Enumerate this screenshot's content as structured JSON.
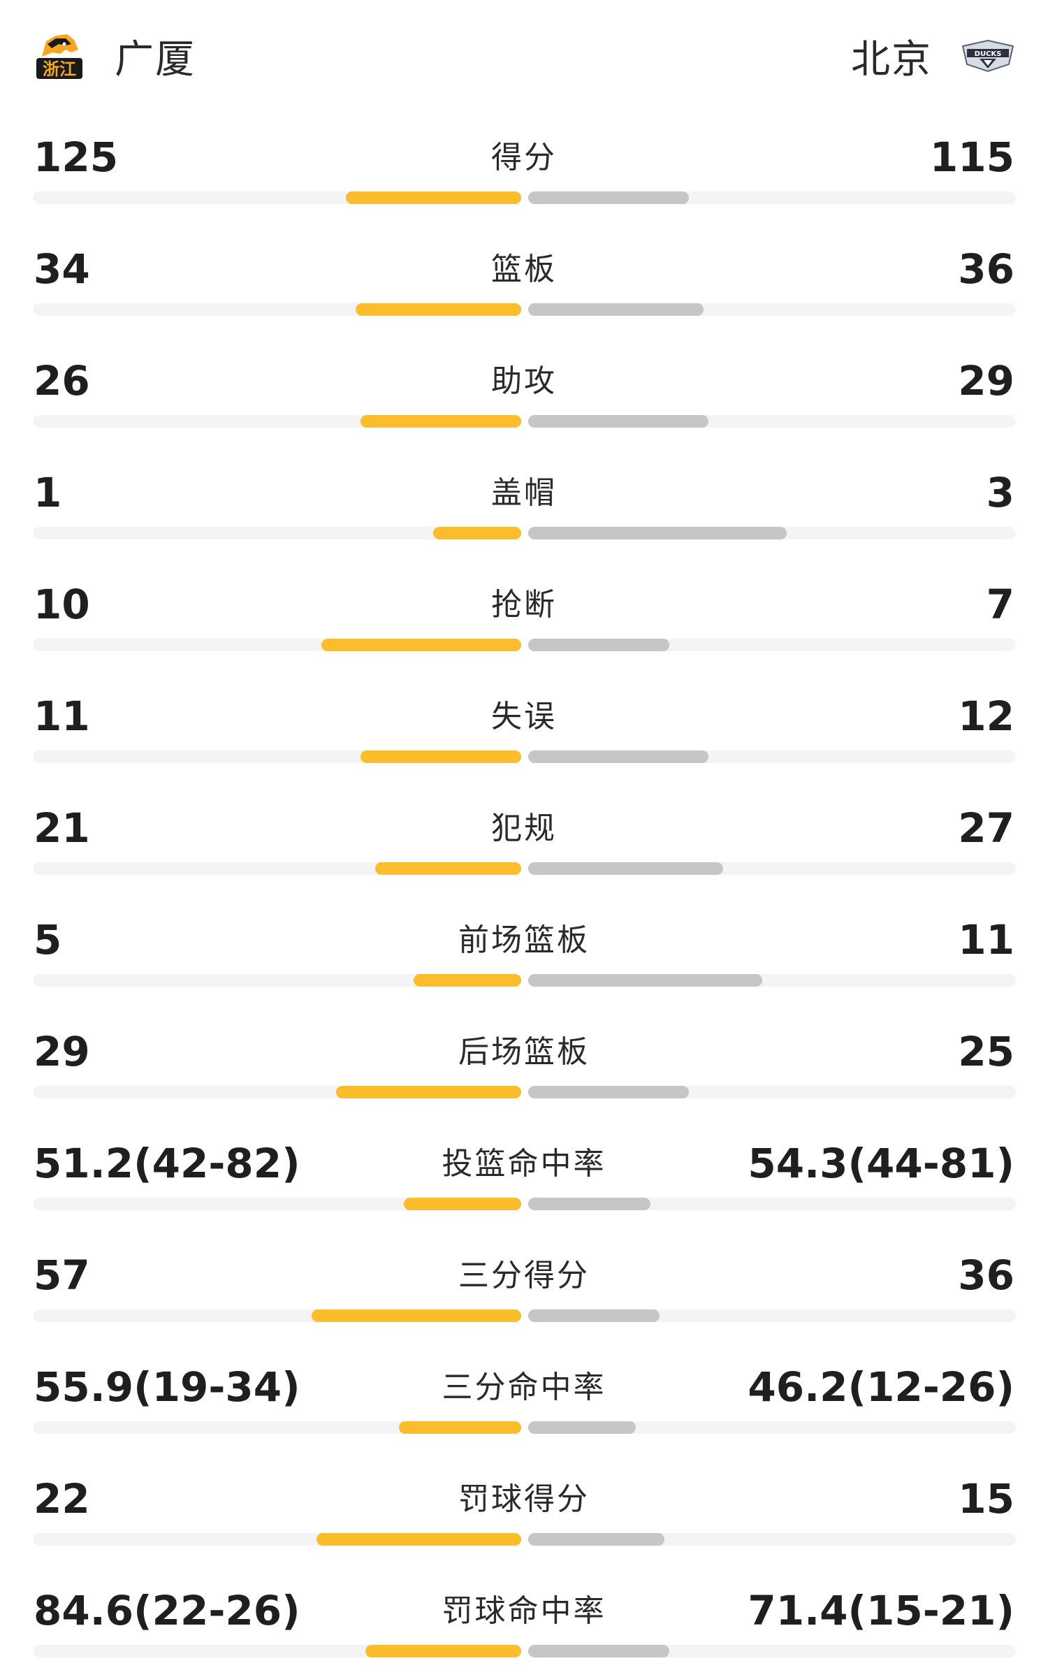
{
  "header": {
    "home_team": "广厦",
    "away_team": "北京",
    "home_logo": "zhejiang-lion-logo",
    "away_logo": "beijing-ducks-logo"
  },
  "colors": {
    "home_bar": "#fcbd2c",
    "away_bar": "#c6c6c6",
    "track": "#f4f4f4"
  },
  "stats": [
    {
      "label": "得分",
      "home": "125",
      "away": "115",
      "home_fraction": 0.36,
      "away_fraction": 0.33
    },
    {
      "label": "篮板",
      "home": "34",
      "away": "36",
      "home_fraction": 0.34,
      "away_fraction": 0.36
    },
    {
      "label": "助攻",
      "home": "26",
      "away": "29",
      "home_fraction": 0.33,
      "away_fraction": 0.37
    },
    {
      "label": "盖帽",
      "home": "1",
      "away": "3",
      "home_fraction": 0.18,
      "away_fraction": 0.53
    },
    {
      "label": "抢断",
      "home": "10",
      "away": "7",
      "home_fraction": 0.41,
      "away_fraction": 0.29
    },
    {
      "label": "失误",
      "home": "11",
      "away": "12",
      "home_fraction": 0.33,
      "away_fraction": 0.37
    },
    {
      "label": "犯规",
      "home": "21",
      "away": "27",
      "home_fraction": 0.3,
      "away_fraction": 0.4
    },
    {
      "label": "前场篮板",
      "home": "5",
      "away": "11",
      "home_fraction": 0.22,
      "away_fraction": 0.48
    },
    {
      "label": "后场篮板",
      "home": "29",
      "away": "25",
      "home_fraction": 0.38,
      "away_fraction": 0.33
    },
    {
      "label": "投篮命中率",
      "home": "51.2(42-82)",
      "away": "54.3(44-81)",
      "home_fraction": 0.24,
      "away_fraction": 0.25
    },
    {
      "label": "三分得分",
      "home": "57",
      "away": "36",
      "home_fraction": 0.43,
      "away_fraction": 0.27
    },
    {
      "label": "三分命中率",
      "home": "55.9(19-34)",
      "away": "46.2(12-26)",
      "home_fraction": 0.25,
      "away_fraction": 0.22
    },
    {
      "label": "罚球得分",
      "home": "22",
      "away": "15",
      "home_fraction": 0.42,
      "away_fraction": 0.28
    },
    {
      "label": "罚球命中率",
      "home": "84.6(22-26)",
      "away": "71.4(15-21)",
      "home_fraction": 0.32,
      "away_fraction": 0.29
    }
  ]
}
